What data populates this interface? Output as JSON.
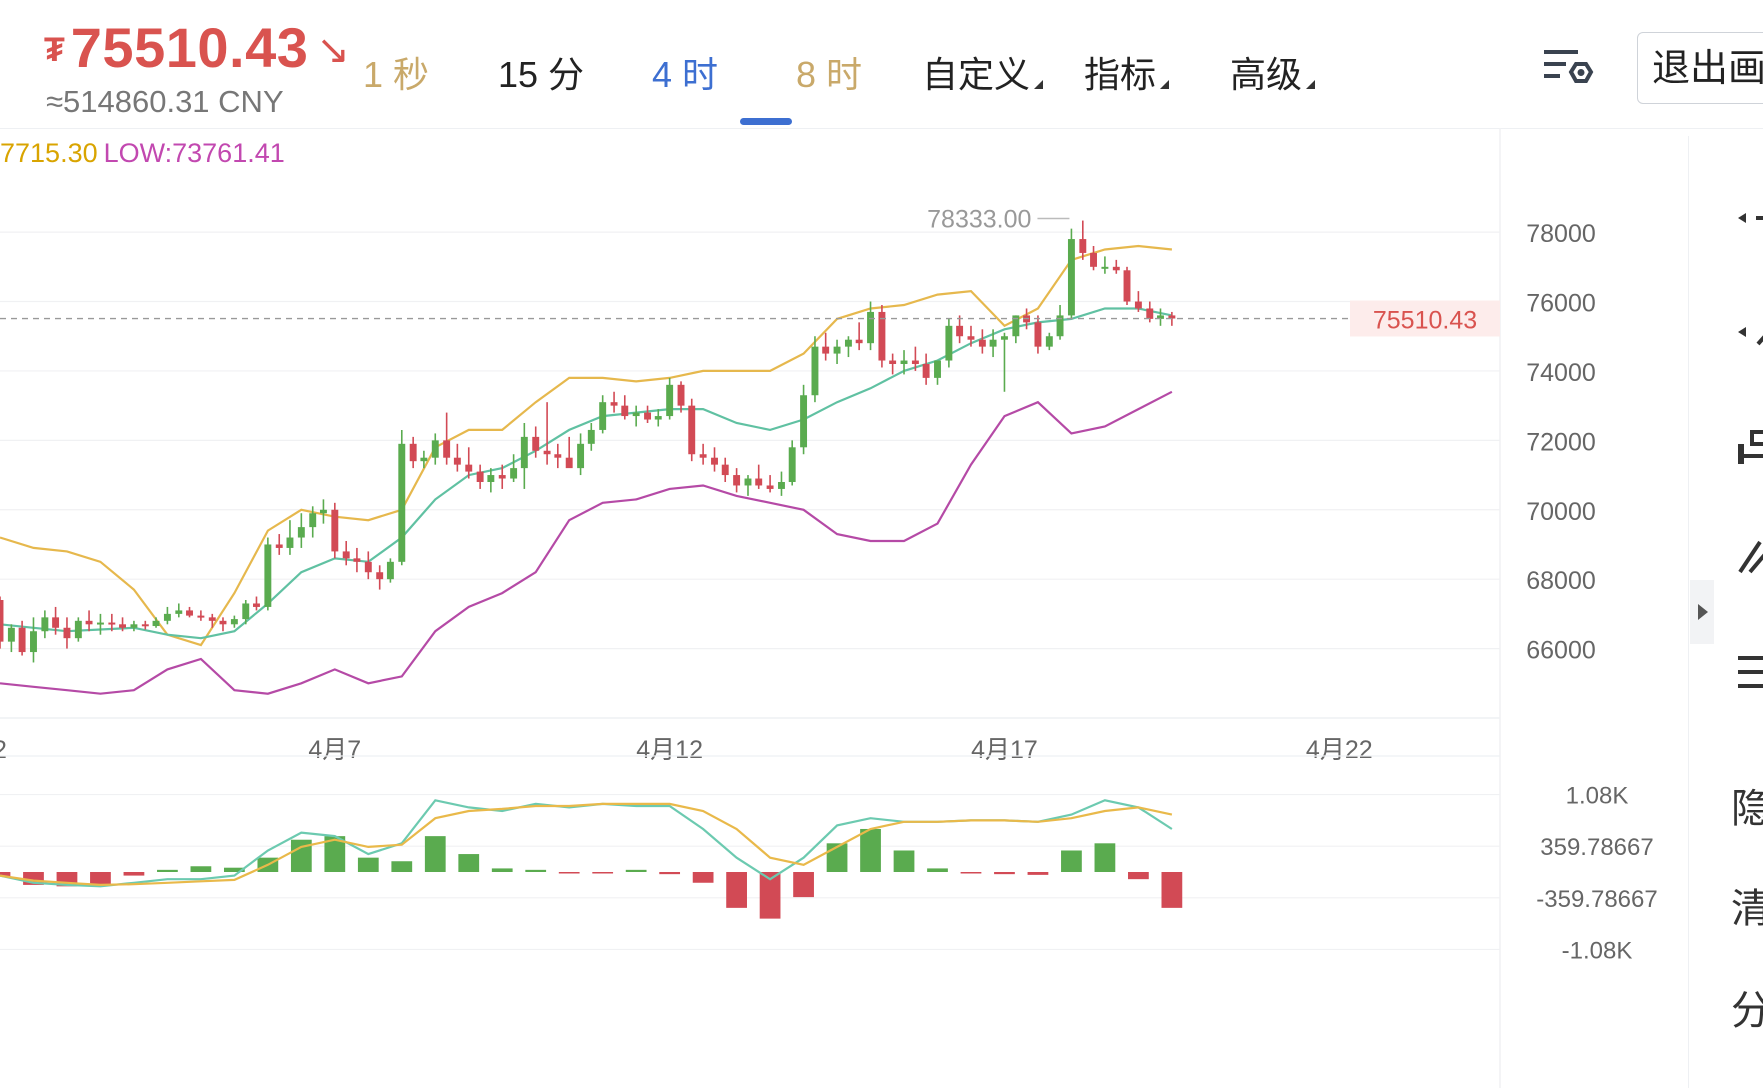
{
  "header": {
    "currency_symbol": "₮",
    "price": "75510.43",
    "price_arrow": "↘",
    "cny_value": "≈514860.31 CNY",
    "tabs": [
      {
        "label": "1 秒",
        "state": "gold"
      },
      {
        "label": "15 分",
        "state": "normal"
      },
      {
        "label": "4 时",
        "state": "active"
      },
      {
        "label": "8 时",
        "state": "gold"
      }
    ],
    "dropdowns": [
      "自定义",
      "指标",
      "高级"
    ],
    "settings_icon": "chart-settings-icon",
    "exit_label": "退出画"
  },
  "hl_line": {
    "high": "7715.30",
    "low": "LOW:73761.41"
  },
  "right_panel": {
    "labels": [
      "隐",
      "清",
      "分"
    ]
  },
  "colors": {
    "up": "#5aab4f",
    "down": "#d24a55",
    "boll_upper": "#e6b84d",
    "boll_mid": "#60c1a2",
    "boll_lower": "#b54aa6",
    "macd_dif": "#6ccab0",
    "macd_dea": "#e9b94a",
    "price_label": "#d9534f"
  },
  "chart_data": [
    {
      "type": "candlestick",
      "timeframe": "4 时",
      "y_ticks": [
        78000,
        76000,
        74000,
        72000,
        70000,
        68000,
        66000
      ],
      "x_tick_labels": [
        "2",
        "4月7",
        "4月12",
        "4月17",
        "4月22"
      ],
      "x_tick_days": [
        2,
        7,
        12,
        17,
        22
      ],
      "ylim": [
        64000,
        81000
      ],
      "xlim_days": [
        2,
        24.4
      ],
      "current_price": 75510.43,
      "current_price_label": "75510.43",
      "max_marker": {
        "day": 18.03,
        "value": 78333.0,
        "label": "78333.00"
      },
      "candles": [
        [
          2.0,
          67400,
          67500,
          66000,
          66200
        ],
        [
          2.17,
          66200,
          66700,
          65900,
          66600
        ],
        [
          2.33,
          66600,
          66800,
          65800,
          65900
        ],
        [
          2.5,
          65900,
          66900,
          65600,
          66500
        ],
        [
          2.67,
          66500,
          67100,
          66300,
          66900
        ],
        [
          2.83,
          66900,
          67200,
          66400,
          66600
        ],
        [
          3.0,
          66600,
          66900,
          66000,
          66300
        ],
        [
          3.17,
          66300,
          66900,
          66200,
          66800
        ],
        [
          3.33,
          66800,
          67100,
          66500,
          66700
        ],
        [
          3.5,
          66700,
          67000,
          66400,
          66750
        ],
        [
          3.67,
          66750,
          67000,
          66500,
          66700
        ],
        [
          3.83,
          66700,
          66900,
          66500,
          66600
        ],
        [
          4.0,
          66600,
          66800,
          66500,
          66700
        ],
        [
          4.17,
          66700,
          66800,
          66550,
          66650
        ],
        [
          4.33,
          66650,
          66900,
          66600,
          66800
        ],
        [
          4.5,
          66800,
          67200,
          66700,
          67000
        ],
        [
          4.67,
          67000,
          67300,
          66900,
          67100
        ],
        [
          4.83,
          67100,
          67200,
          66900,
          66950
        ],
        [
          5.0,
          66950,
          67100,
          66800,
          66900
        ],
        [
          5.17,
          66900,
          67000,
          66600,
          66800
        ],
        [
          5.33,
          66800,
          66900,
          66500,
          66700
        ],
        [
          5.5,
          66700,
          66950,
          66600,
          66850
        ],
        [
          5.67,
          66850,
          67400,
          66700,
          67300
        ],
        [
          5.83,
          67300,
          67500,
          67100,
          67200
        ],
        [
          6.0,
          67200,
          69200,
          67100,
          69000
        ],
        [
          6.17,
          69000,
          69300,
          68700,
          68900
        ],
        [
          6.33,
          68900,
          69700,
          68700,
          69200
        ],
        [
          6.5,
          69200,
          69900,
          68900,
          69500
        ],
        [
          6.67,
          69500,
          70100,
          69200,
          69900
        ],
        [
          6.83,
          69900,
          70300,
          69600,
          70000
        ],
        [
          7.0,
          70000,
          70200,
          68600,
          68800
        ],
        [
          7.17,
          68800,
          69100,
          68400,
          68600
        ],
        [
          7.33,
          68600,
          68900,
          68200,
          68500
        ],
        [
          7.5,
          68500,
          68800,
          68000,
          68200
        ],
        [
          7.67,
          68200,
          68400,
          67700,
          68000
        ],
        [
          7.83,
          68000,
          68600,
          67900,
          68500
        ],
        [
          8.0,
          68500,
          72300,
          68400,
          71900
        ],
        [
          8.17,
          71900,
          72100,
          71200,
          71400
        ],
        [
          8.33,
          71400,
          71700,
          71200,
          71500
        ],
        [
          8.5,
          71500,
          72200,
          71300,
          72000
        ],
        [
          8.67,
          72000,
          72800,
          71300,
          71500
        ],
        [
          8.83,
          71500,
          71900,
          71100,
          71300
        ],
        [
          9.0,
          71300,
          71800,
          70900,
          71100
        ],
        [
          9.17,
          71100,
          71300,
          70600,
          70800
        ],
        [
          9.33,
          70800,
          71200,
          70500,
          71000
        ],
        [
          9.5,
          71000,
          71300,
          70600,
          70900
        ],
        [
          9.67,
          70900,
          71600,
          70800,
          71200
        ],
        [
          9.83,
          71200,
          72500,
          70600,
          72100
        ],
        [
          10.0,
          72100,
          72400,
          71500,
          71700
        ],
        [
          10.17,
          71700,
          73100,
          71300,
          71600
        ],
        [
          10.33,
          71600,
          71900,
          71200,
          71500
        ],
        [
          10.5,
          71500,
          72100,
          71300,
          71200
        ],
        [
          10.67,
          71200,
          72200,
          71000,
          71900
        ],
        [
          10.83,
          71900,
          72500,
          71700,
          72300
        ],
        [
          11.0,
          72300,
          73300,
          72200,
          73100
        ],
        [
          11.17,
          73100,
          73400,
          72800,
          73000
        ],
        [
          11.33,
          73000,
          73300,
          72600,
          72700
        ],
        [
          11.5,
          72700,
          73000,
          72400,
          72800
        ],
        [
          11.67,
          72800,
          73000,
          72500,
          72600
        ],
        [
          11.83,
          72600,
          72900,
          72400,
          72700
        ],
        [
          12.0,
          72700,
          73800,
          72600,
          73600
        ],
        [
          12.17,
          73600,
          73700,
          72800,
          73000
        ],
        [
          12.33,
          73000,
          73200,
          71400,
          71600
        ],
        [
          12.5,
          71600,
          71900,
          71300,
          71500
        ],
        [
          12.67,
          71500,
          71800,
          71100,
          71300
        ],
        [
          12.83,
          71300,
          71500,
          70800,
          71000
        ],
        [
          13.0,
          71000,
          71200,
          70500,
          70700
        ],
        [
          13.17,
          70700,
          71000,
          70400,
          70900
        ],
        [
          13.33,
          70900,
          71300,
          70600,
          70700
        ],
        [
          13.5,
          70700,
          71000,
          70500,
          70600
        ],
        [
          13.67,
          70600,
          71100,
          70400,
          70800
        ],
        [
          13.83,
          70800,
          72000,
          70700,
          71800
        ],
        [
          14.0,
          71800,
          73600,
          71600,
          73300
        ],
        [
          14.17,
          73300,
          75000,
          73100,
          74700
        ],
        [
          14.33,
          74700,
          75100,
          74300,
          74500
        ],
        [
          14.5,
          74500,
          74900,
          74200,
          74700
        ],
        [
          14.67,
          74700,
          75000,
          74400,
          74900
        ],
        [
          14.83,
          74900,
          75400,
          74600,
          74800
        ],
        [
          15.0,
          74800,
          76000,
          74600,
          75700
        ],
        [
          15.17,
          75700,
          75900,
          74100,
          74300
        ],
        [
          15.33,
          74300,
          74500,
          73900,
          74200
        ],
        [
          15.5,
          74200,
          74600,
          73900,
          74300
        ],
        [
          15.67,
          74300,
          74700,
          74000,
          74200
        ],
        [
          15.83,
          74200,
          74500,
          73600,
          73800
        ],
        [
          16.0,
          73800,
          74200,
          73600,
          74300
        ],
        [
          16.17,
          74300,
          75500,
          74100,
          75300
        ],
        [
          16.33,
          75300,
          75600,
          74800,
          75000
        ],
        [
          16.5,
          75000,
          75300,
          74700,
          74900
        ],
        [
          16.67,
          74900,
          75200,
          74500,
          74700
        ],
        [
          16.83,
          74700,
          75200,
          74400,
          74900
        ],
        [
          17.0,
          74900,
          75100,
          73400,
          75000
        ],
        [
          17.17,
          75000,
          75600,
          74800,
          75600
        ],
        [
          17.33,
          75600,
          75800,
          75200,
          75400
        ],
        [
          17.5,
          75400,
          75600,
          74500,
          74700
        ],
        [
          17.67,
          74700,
          75100,
          74600,
          75000
        ],
        [
          17.83,
          75000,
          75900,
          74900,
          75600
        ],
        [
          18.0,
          75600,
          78100,
          75500,
          77800
        ],
        [
          18.17,
          77800,
          78333,
          77200,
          77400
        ],
        [
          18.33,
          77400,
          77600,
          76900,
          77000
        ],
        [
          18.5,
          77000,
          77300,
          76800,
          77000
        ],
        [
          18.67,
          77000,
          77200,
          76800,
          76900
        ],
        [
          18.83,
          76900,
          77000,
          75900,
          76000
        ],
        [
          19.0,
          76000,
          76300,
          75700,
          75800
        ],
        [
          19.17,
          75800,
          76000,
          75400,
          75500
        ],
        [
          19.33,
          75500,
          75800,
          75300,
          75600
        ],
        [
          19.5,
          75600,
          75700,
          75300,
          75510.43
        ]
      ],
      "bollinger": {
        "days": [
          2,
          2.5,
          3,
          3.5,
          4,
          4.5,
          5,
          5.5,
          6,
          6.5,
          7,
          7.5,
          8,
          8.5,
          9,
          9.5,
          10,
          10.5,
          11,
          11.5,
          12,
          12.5,
          13,
          13.5,
          14,
          14.5,
          15,
          15.5,
          16,
          16.5,
          17,
          17.5,
          18,
          18.5,
          19,
          19.5
        ],
        "upper": [
          69200,
          68900,
          68800,
          68500,
          67700,
          66400,
          66100,
          67600,
          69400,
          70000,
          69800,
          69700,
          70000,
          71800,
          72300,
          72300,
          73100,
          73800,
          73800,
          73700,
          73800,
          74000,
          74000,
          74000,
          74500,
          75500,
          75800,
          75900,
          76200,
          76300,
          75300,
          75800,
          77200,
          77500,
          77600,
          77500
        ],
        "middle": [
          66700,
          66600,
          66500,
          66550,
          66600,
          66400,
          66300,
          66500,
          67300,
          68200,
          68600,
          68500,
          69200,
          70300,
          71000,
          71200,
          71700,
          72300,
          72700,
          72800,
          72900,
          72900,
          72500,
          72300,
          72600,
          73100,
          73500,
          74000,
          74300,
          74800,
          75200,
          75400,
          75500,
          75800,
          75800,
          75600
        ],
        "lower": [
          65000,
          64900,
          64800,
          64700,
          64800,
          65400,
          65700,
          64800,
          64700,
          65000,
          65400,
          65000,
          65200,
          66500,
          67200,
          67600,
          68200,
          69700,
          70200,
          70300,
          70600,
          70700,
          70400,
          70200,
          70000,
          69300,
          69100,
          69100,
          69600,
          71300,
          72700,
          73100,
          72200,
          72400,
          72900,
          73400
        ]
      },
      "macd": {
        "y_ticks": [
          "1.08K",
          "359.78667",
          "-359.78667",
          "-1.08K"
        ],
        "y_tick_values": [
          1080,
          359.78667,
          -359.78667,
          -1080
        ],
        "ylim": [
          -1450,
          1450
        ],
        "days": [
          2,
          2.5,
          3,
          3.5,
          4,
          4.5,
          5,
          5.5,
          6,
          6.5,
          7,
          7.5,
          8,
          8.5,
          9,
          9.5,
          10,
          10.5,
          11,
          11.5,
          12,
          12.5,
          13,
          13.5,
          14,
          14.5,
          15,
          15.5,
          16,
          16.5,
          17,
          17.5,
          18,
          18.5,
          19,
          19.5
        ],
        "dif": [
          -50,
          -150,
          -180,
          -200,
          -150,
          -100,
          -100,
          -50,
          300,
          550,
          500,
          250,
          400,
          1000,
          900,
          850,
          950,
          900,
          950,
          920,
          920,
          600,
          200,
          -100,
          200,
          650,
          750,
          700,
          700,
          720,
          720,
          700,
          800,
          1000,
          900,
          600
        ],
        "dea": [
          -50,
          -120,
          -150,
          -180,
          -170,
          -150,
          -130,
          -110,
          100,
          350,
          450,
          350,
          380,
          750,
          850,
          880,
          920,
          920,
          950,
          950,
          950,
          850,
          600,
          200,
          100,
          350,
          600,
          700,
          700,
          720,
          720,
          700,
          750,
          850,
          900,
          800
        ],
        "hist": [
          -60,
          -180,
          -200,
          -180,
          -50,
          30,
          80,
          60,
          200,
          450,
          500,
          200,
          150,
          500,
          250,
          50,
          30,
          -20,
          -10,
          30,
          -30,
          -150,
          -500,
          -650,
          -350,
          400,
          600,
          300,
          50,
          -10,
          -30,
          -40,
          300,
          400,
          -100,
          -500
        ]
      }
    }
  ]
}
